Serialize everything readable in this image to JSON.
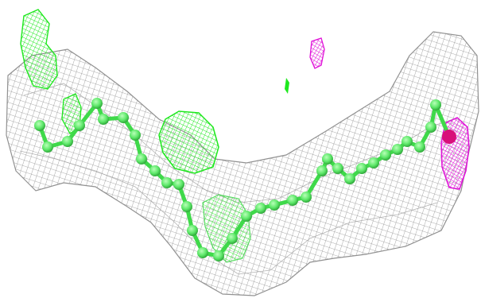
{
  "image": {
    "subject": "electron-density-mesh-with-ball-and-stick-chain",
    "colors": {
      "background": "#ffffff",
      "density_mesh": "#8c8c8c",
      "chain_bonds": "#3fd94a",
      "chain_atoms": "#5ee86a",
      "positive_difference_mesh": "#1ee81e",
      "negative_difference_mesh": "#e010d8",
      "terminal_atom": "#d8107a"
    }
  }
}
